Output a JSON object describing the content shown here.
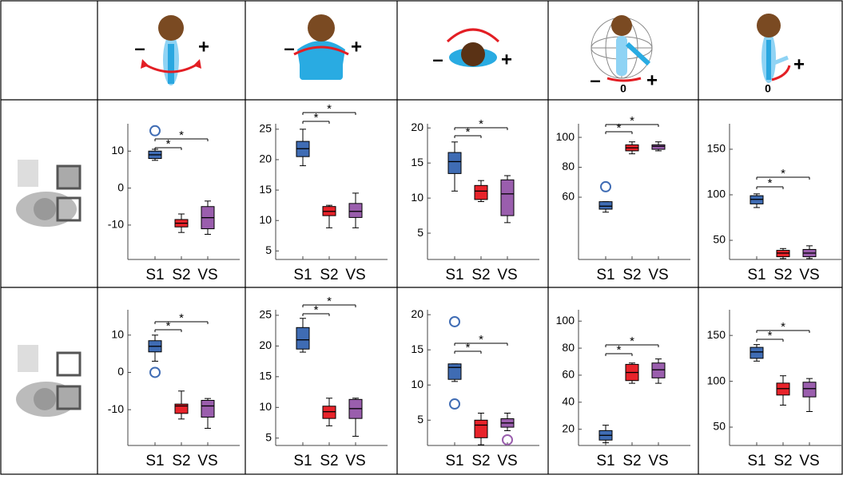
{
  "column_headers": [
    {
      "minus": "–",
      "plus": "+"
    },
    {
      "minus": "–",
      "plus": "+"
    },
    {
      "minus": "–",
      "plus": "+"
    },
    {
      "minus": "–",
      "plus": "+",
      "zero": "0"
    },
    {
      "plus": "+",
      "zero": "0"
    }
  ],
  "chart_data": [
    {
      "type": "box",
      "categories": [
        "S1",
        "S2",
        "VS"
      ],
      "colors": [
        "#3f6cb4",
        "#e8232a",
        "#9a5ead"
      ],
      "ylim": [
        -19.3,
        17.4
      ],
      "yticks": [
        -10,
        0,
        10
      ],
      "boxes": [
        {
          "min": 7.5,
          "q1": 8,
          "median": 9,
          "q3": 10,
          "max": 10.5,
          "outliers": [
            15.5
          ]
        },
        {
          "min": -12,
          "q1": -10.5,
          "median": -9.5,
          "q3": -8.5,
          "max": -7,
          "outliers": []
        },
        {
          "min": -12.5,
          "q1": -11,
          "median": -8,
          "q3": -5,
          "max": -3.5,
          "outliers": []
        }
      ],
      "brackets": [
        {
          "from": 0,
          "to": 1,
          "label": "*"
        },
        {
          "from": 0,
          "to": 2,
          "label": "*"
        }
      ]
    },
    {
      "type": "box",
      "categories": [
        "S1",
        "S2",
        "VS"
      ],
      "colors": [
        "#3f6cb4",
        "#e8232a",
        "#9a5ead"
      ],
      "ylim": [
        3.6,
        25.9
      ],
      "yticks": [
        5,
        10,
        15,
        20,
        25
      ],
      "boxes": [
        {
          "min": 19,
          "q1": 20.5,
          "median": 21.8,
          "q3": 23,
          "max": 25,
          "outliers": []
        },
        {
          "min": 8.8,
          "q1": 10.8,
          "median": 11.5,
          "q3": 12.3,
          "max": 12.5,
          "outliers": []
        },
        {
          "min": 8.8,
          "q1": 10.5,
          "median": 11.5,
          "q3": 12.8,
          "max": 14.5,
          "outliers": []
        }
      ],
      "brackets": [
        {
          "from": 0,
          "to": 1,
          "label": "*"
        },
        {
          "from": 0,
          "to": 2,
          "label": "*"
        }
      ]
    },
    {
      "type": "box",
      "categories": [
        "S1",
        "S2",
        "VS"
      ],
      "colors": [
        "#3f6cb4",
        "#e8232a",
        "#9a5ead"
      ],
      "ylim": [
        1.25,
        20.6
      ],
      "yticks": [
        5,
        10,
        15,
        20
      ],
      "boxes": [
        {
          "min": 11,
          "q1": 13.5,
          "median": 15.2,
          "q3": 16.5,
          "max": 18,
          "outliers": []
        },
        {
          "min": 9.5,
          "q1": 9.8,
          "median": 11,
          "q3": 11.8,
          "max": 12.5,
          "outliers": []
        },
        {
          "min": 6.5,
          "q1": 7.5,
          "median": 10.6,
          "q3": 12.6,
          "max": 13.2,
          "outliers": []
        }
      ],
      "brackets": [
        {
          "from": 0,
          "to": 1,
          "label": "*"
        },
        {
          "from": 0,
          "to": 2,
          "label": "*"
        }
      ]
    },
    {
      "type": "box",
      "categories": [
        "S1",
        "S2",
        "VS"
      ],
      "colors": [
        "#3f6cb4",
        "#e8232a",
        "#9a5ead"
      ],
      "ylim": [
        18.4,
        109.1
      ],
      "yticks": [
        60,
        80,
        100
      ],
      "boxes": [
        {
          "min": 50,
          "q1": 52,
          "median": 54,
          "q3": 57,
          "max": 57,
          "outliers": [
            67
          ]
        },
        {
          "min": 89,
          "q1": 91,
          "median": 93,
          "q3": 95,
          "max": 97,
          "outliers": []
        },
        {
          "min": 91,
          "q1": 92,
          "median": 94,
          "q3": 95,
          "max": 97,
          "outliers": []
        }
      ],
      "brackets": [
        {
          "from": 0,
          "to": 1,
          "label": "*"
        },
        {
          "from": 0,
          "to": 2,
          "label": "*"
        }
      ]
    },
    {
      "type": "box",
      "categories": [
        "S1",
        "S2",
        "VS"
      ],
      "colors": [
        "#3f6cb4",
        "#e8232a",
        "#9a5ead"
      ],
      "ylim": [
        29,
        178
      ],
      "yticks": [
        50,
        100,
        150
      ],
      "boxes": [
        {
          "min": 86,
          "q1": 90,
          "median": 95,
          "q3": 99,
          "max": 101,
          "outliers": []
        },
        {
          "min": 30,
          "q1": 32,
          "median": 36,
          "q3": 39,
          "max": 41,
          "outliers": []
        },
        {
          "min": 30,
          "q1": 32,
          "median": 36,
          "q3": 40,
          "max": 44,
          "outliers": []
        }
      ],
      "brackets": [
        {
          "from": 0,
          "to": 1,
          "label": "*"
        },
        {
          "from": 0,
          "to": 2,
          "label": "*"
        }
      ]
    },
    {
      "type": "box",
      "categories": [
        "S1",
        "S2",
        "VS"
      ],
      "colors": [
        "#3f6cb4",
        "#e8232a",
        "#9a5ead"
      ],
      "ylim": [
        -19.6,
        16.8
      ],
      "yticks": [
        -10,
        0,
        10
      ],
      "boxes": [
        {
          "min": 3,
          "q1": 5.5,
          "median": 7,
          "q3": 8.5,
          "max": 10,
          "outliers": [
            0
          ]
        },
        {
          "min": -12.5,
          "q1": -11,
          "median": -9,
          "q3": -8.5,
          "max": -5,
          "outliers": []
        },
        {
          "min": -15,
          "q1": -12,
          "median": -9,
          "q3": -7.5,
          "max": -7,
          "outliers": []
        }
      ],
      "brackets": [
        {
          "from": 0,
          "to": 1,
          "label": "*"
        },
        {
          "from": 0,
          "to": 2,
          "label": "*"
        }
      ]
    },
    {
      "type": "box",
      "categories": [
        "S1",
        "S2",
        "VS"
      ],
      "colors": [
        "#3f6cb4",
        "#e8232a",
        "#9a5ead"
      ],
      "ylim": [
        3.8,
        25.9
      ],
      "yticks": [
        5,
        10,
        15,
        20,
        25
      ],
      "boxes": [
        {
          "min": 19,
          "q1": 19.5,
          "median": 21,
          "q3": 23,
          "max": 24.5,
          "outliers": []
        },
        {
          "min": 7,
          "q1": 8.2,
          "median": 9.3,
          "q3": 10.2,
          "max": 11.5,
          "outliers": []
        },
        {
          "min": 5.3,
          "q1": 8.2,
          "median": 9.8,
          "q3": 11.3,
          "max": 11.5,
          "outliers": []
        }
      ],
      "brackets": [
        {
          "from": 0,
          "to": 1,
          "label": "*"
        },
        {
          "from": 0,
          "to": 2,
          "label": "*"
        }
      ]
    },
    {
      "type": "box",
      "categories": [
        "S1",
        "S2",
        "VS"
      ],
      "colors": [
        "#3f6cb4",
        "#e8232a",
        "#9a5ead"
      ],
      "ylim": [
        1.4,
        20.7
      ],
      "yticks": [
        5,
        10,
        15,
        20
      ],
      "boxes": [
        {
          "min": 10.5,
          "q1": 10.8,
          "median": 12.5,
          "q3": 13,
          "max": 13,
          "outliers": [
            19,
            7.3
          ]
        },
        {
          "min": 1.5,
          "q1": 2.5,
          "median": 4.3,
          "q3": 5,
          "max": 6,
          "outliers": []
        },
        {
          "min": 3.5,
          "q1": 4,
          "median": 4.6,
          "q3": 5.2,
          "max": 6,
          "outliers": [
            2.2
          ]
        }
      ],
      "brackets": [
        {
          "from": 0,
          "to": 1,
          "label": "*"
        },
        {
          "from": 0,
          "to": 2,
          "label": "*"
        }
      ]
    },
    {
      "type": "box",
      "categories": [
        "S1",
        "S2",
        "VS"
      ],
      "colors": [
        "#3f6cb4",
        "#e8232a",
        "#9a5ead"
      ],
      "ylim": [
        8,
        108.4
      ],
      "yticks": [
        20,
        40,
        60,
        80,
        100
      ],
      "boxes": [
        {
          "min": 10,
          "q1": 12,
          "median": 15.5,
          "q3": 19,
          "max": 23,
          "outliers": []
        },
        {
          "min": 54,
          "q1": 56,
          "median": 62,
          "q3": 68,
          "max": 69,
          "outliers": []
        },
        {
          "min": 54,
          "q1": 58,
          "median": 64,
          "q3": 69,
          "max": 72,
          "outliers": []
        }
      ],
      "brackets": [
        {
          "from": 0,
          "to": 1,
          "label": "*"
        },
        {
          "from": 0,
          "to": 2,
          "label": "*"
        }
      ]
    },
    {
      "type": "box",
      "categories": [
        "S1",
        "S2",
        "VS"
      ],
      "colors": [
        "#3f6cb4",
        "#e8232a",
        "#9a5ead"
      ],
      "ylim": [
        30,
        178
      ],
      "yticks": [
        50,
        100,
        150
      ],
      "boxes": [
        {
          "min": 122,
          "q1": 125,
          "median": 132,
          "q3": 137,
          "max": 140,
          "outliers": []
        },
        {
          "min": 74,
          "q1": 85,
          "median": 92,
          "q3": 98,
          "max": 106,
          "outliers": []
        },
        {
          "min": 67,
          "q1": 83,
          "median": 92,
          "q3": 99,
          "max": 103,
          "outliers": []
        }
      ],
      "brackets": [
        {
          "from": 0,
          "to": 1,
          "label": "*"
        },
        {
          "from": 0,
          "to": 2,
          "label": "*"
        }
      ]
    }
  ]
}
